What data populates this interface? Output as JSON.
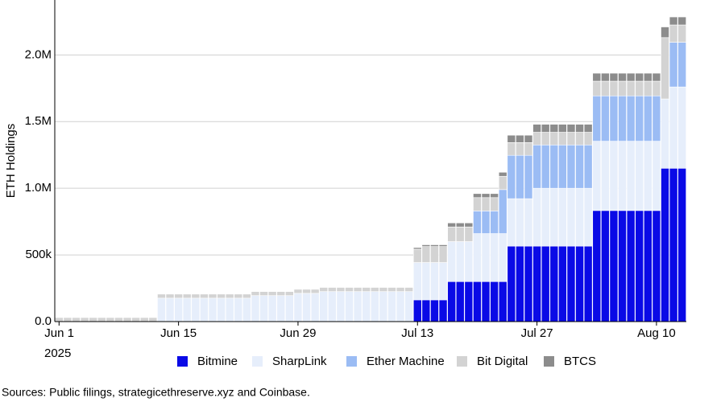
{
  "chart_data": {
    "type": "stacked-bar",
    "y_label": "ETH Holdings",
    "x_year": "2025",
    "source": "Sources: Public filings, strategicethreserve.xyz and Coinbase.",
    "categories": [
      "Jun 1",
      null,
      null,
      null,
      null,
      null,
      null,
      null,
      null,
      null,
      null,
      null,
      null,
      null,
      "Jun 15",
      null,
      null,
      null,
      null,
      null,
      null,
      null,
      null,
      null,
      null,
      null,
      null,
      null,
      "Jun 29",
      null,
      null,
      null,
      null,
      null,
      null,
      null,
      null,
      null,
      null,
      null,
      null,
      null,
      "Jul 13",
      null,
      null,
      null,
      null,
      null,
      null,
      null,
      null,
      null,
      null,
      null,
      null,
      null,
      "Jul 27",
      null,
      null,
      null,
      null,
      null,
      null,
      null,
      null,
      null,
      null,
      null,
      null,
      null,
      "Aug 10",
      null,
      null,
      null
    ],
    "series": [
      {
        "name": "Bitmine",
        "color": "#0a0ae6",
        "values": [
          0,
          0,
          0,
          0,
          0,
          0,
          0,
          0,
          0,
          0,
          0,
          0,
          0,
          0,
          0,
          0,
          0,
          0,
          0,
          0,
          0,
          0,
          0,
          0,
          0,
          0,
          0,
          0,
          0,
          0,
          0,
          0,
          0,
          0,
          0,
          0,
          0,
          0,
          0,
          0,
          0,
          0,
          163000,
          163000,
          163000,
          163000,
          300000,
          300000,
          300000,
          300000,
          300000,
          300000,
          300000,
          566000,
          566000,
          566000,
          566000,
          566000,
          566000,
          566000,
          566000,
          566000,
          566000,
          833000,
          833000,
          833000,
          833000,
          833000,
          833000,
          833000,
          833000,
          1150000,
          1150000,
          1150000
        ]
      },
      {
        "name": "SharpLink",
        "color": "#e6eefb",
        "values": [
          0,
          0,
          0,
          0,
          0,
          0,
          0,
          0,
          0,
          0,
          0,
          0,
          176000,
          176000,
          176000,
          176000,
          176000,
          176000,
          176000,
          176000,
          176000,
          176000,
          176000,
          195000,
          195000,
          195000,
          195000,
          195000,
          212000,
          212000,
          212000,
          225000,
          225000,
          225000,
          225000,
          225000,
          225000,
          225000,
          225000,
          225000,
          225000,
          225000,
          280000,
          280000,
          280000,
          280000,
          300000,
          300000,
          300000,
          360000,
          360000,
          360000,
          360000,
          356000,
          356000,
          356000,
          434000,
          434000,
          434000,
          434000,
          434000,
          434000,
          434000,
          520000,
          520000,
          520000,
          520000,
          520000,
          520000,
          520000,
          520000,
          520000,
          610000,
          610000
        ]
      },
      {
        "name": "Ether Machine",
        "color": "#9bbcf4",
        "values": [
          0,
          0,
          0,
          0,
          0,
          0,
          0,
          0,
          0,
          0,
          0,
          0,
          0,
          0,
          0,
          0,
          0,
          0,
          0,
          0,
          0,
          0,
          0,
          0,
          0,
          0,
          0,
          0,
          0,
          0,
          0,
          0,
          0,
          0,
          0,
          0,
          0,
          0,
          0,
          0,
          0,
          0,
          0,
          0,
          0,
          0,
          0,
          0,
          0,
          170000,
          170000,
          170000,
          330000,
          325000,
          325000,
          325000,
          325000,
          325000,
          325000,
          325000,
          325000,
          325000,
          325000,
          340000,
          340000,
          340000,
          340000,
          340000,
          340000,
          340000,
          340000,
          0,
          335000,
          335000
        ]
      },
      {
        "name": "Bit Digital",
        "color": "#d3d3d3",
        "values": [
          30000,
          30000,
          30000,
          30000,
          30000,
          30000,
          30000,
          30000,
          30000,
          30000,
          30000,
          30000,
          30000,
          30000,
          30000,
          30000,
          30000,
          30000,
          30000,
          30000,
          30000,
          30000,
          30000,
          30000,
          30000,
          30000,
          30000,
          30000,
          30000,
          30000,
          30000,
          30000,
          30000,
          30000,
          30000,
          30000,
          30000,
          30000,
          30000,
          30000,
          30000,
          30000,
          100000,
          120000,
          120000,
          120000,
          110000,
          110000,
          110000,
          100000,
          100000,
          100000,
          100000,
          96000,
          96000,
          96000,
          95000,
          95000,
          95000,
          95000,
          95000,
          95000,
          95000,
          110000,
          110000,
          110000,
          110000,
          110000,
          110000,
          110000,
          110000,
          460000,
          130000,
          130000
        ]
      },
      {
        "name": "BTCS",
        "color": "#8c8c8c",
        "values": [
          0,
          0,
          0,
          0,
          0,
          0,
          0,
          0,
          0,
          0,
          0,
          0,
          0,
          0,
          0,
          0,
          0,
          0,
          0,
          0,
          0,
          0,
          0,
          0,
          0,
          0,
          0,
          0,
          0,
          0,
          0,
          4000,
          4000,
          4000,
          4000,
          4000,
          4000,
          4000,
          4000,
          4000,
          4000,
          4000,
          12000,
          13000,
          13000,
          13000,
          30000,
          30000,
          30000,
          30000,
          30000,
          30000,
          30000,
          55000,
          55000,
          55000,
          60000,
          60000,
          60000,
          60000,
          60000,
          60000,
          60000,
          60000,
          60000,
          60000,
          60000,
          60000,
          60000,
          60000,
          60000,
          80000,
          60000,
          60000
        ]
      }
    ],
    "ylim": [
      0,
      2400000
    ],
    "yticks": [
      {
        "value": 0,
        "label": "0.0"
      },
      {
        "value": 500000,
        "label": "500k"
      },
      {
        "value": 1000000,
        "label": "1.0M"
      },
      {
        "value": 1500000,
        "label": "1.5M"
      },
      {
        "value": 2000000,
        "label": "2.0M"
      }
    ],
    "grid": true
  }
}
